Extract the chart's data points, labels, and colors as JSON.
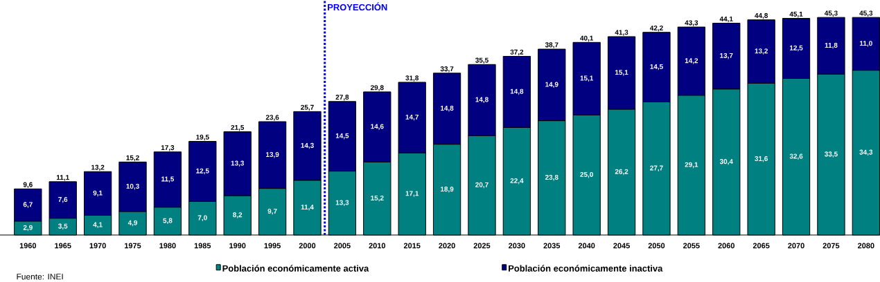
{
  "chart_data": {
    "type": "bar",
    "stacked": true,
    "x": [
      1960,
      1965,
      1970,
      1975,
      1980,
      1985,
      1990,
      1995,
      2000,
      2005,
      2010,
      2015,
      2020,
      2025,
      2030,
      2035,
      2040,
      2045,
      2050,
      2055,
      2060,
      2065,
      2070,
      2075,
      2080
    ],
    "xlim": [
      1956,
      2082
    ],
    "xticks": [
      1960,
      1965,
      1970,
      1975,
      1980,
      1985,
      1990,
      1995,
      2000,
      2005,
      2010,
      2015,
      2020,
      2025,
      2030,
      2035,
      2040,
      2045,
      2050,
      2055,
      2060,
      2065,
      2070,
      2075,
      2080
    ],
    "series": [
      {
        "name": "Población económicamente activa",
        "color": "#008080",
        "values": [
          2.9,
          3.5,
          4.1,
          4.9,
          5.8,
          7.0,
          8.2,
          9.7,
          11.4,
          13.3,
          15.2,
          17.1,
          18.9,
          20.7,
          22.4,
          23.8,
          25.0,
          26.2,
          27.7,
          29.1,
          30.4,
          31.6,
          32.6,
          33.5,
          34.3
        ],
        "value_labels": [
          "2,9",
          "3,5",
          "4,1",
          "4,9",
          "5,8",
          "7,0",
          "8,2",
          "9,7",
          "11,4",
          "13,3",
          "15,2",
          "17,1",
          "18,9",
          "20,7",
          "22,4",
          "23,8",
          "25,0",
          "26,2",
          "27,7",
          "29,1",
          "30,4",
          "31,6",
          "32,6",
          "33,5",
          "34,3"
        ]
      },
      {
        "name": "Población económicamente inactiva",
        "color": "#000080",
        "values": [
          6.7,
          7.6,
          9.1,
          10.3,
          11.5,
          12.5,
          13.3,
          13.9,
          14.3,
          14.5,
          14.6,
          14.7,
          14.8,
          14.8,
          14.8,
          14.9,
          15.1,
          15.1,
          14.5,
          14.2,
          13.7,
          13.2,
          12.5,
          11.8,
          11.0
        ],
        "value_labels": [
          "6,7",
          "7,6",
          "9,1",
          "10,3",
          "11,5",
          "12,5",
          "13,3",
          "13,9",
          "14,3",
          "14,5",
          "14,6",
          "14,7",
          "14,8",
          "14,8",
          "14,8",
          "14,9",
          "15,1",
          "15,1",
          "14,5",
          "14,2",
          "13,7",
          "13,2",
          "12,5",
          "11,8",
          "11,0"
        ]
      }
    ],
    "totals": [
      "9,6",
      "11,1",
      "13,2",
      "15,2",
      "17,3",
      "19,5",
      "21,5",
      "23,6",
      "25,7",
      "27,8",
      "29,8",
      "31,8",
      "33,7",
      "35,5",
      "37,2",
      "38,7",
      "40,1",
      "41,3",
      "42,2",
      "43,3",
      "44,1",
      "44,8",
      "45,1",
      "45,3",
      "45,3"
    ],
    "ref_lines": [
      {
        "axis": "x",
        "value": 2002.5,
        "label": "PROYECCIÓN",
        "color": "#0000ff",
        "line_style": "dotted"
      }
    ],
    "legend": "bottom",
    "annotations": [
      "Fuente: INEI"
    ]
  }
}
